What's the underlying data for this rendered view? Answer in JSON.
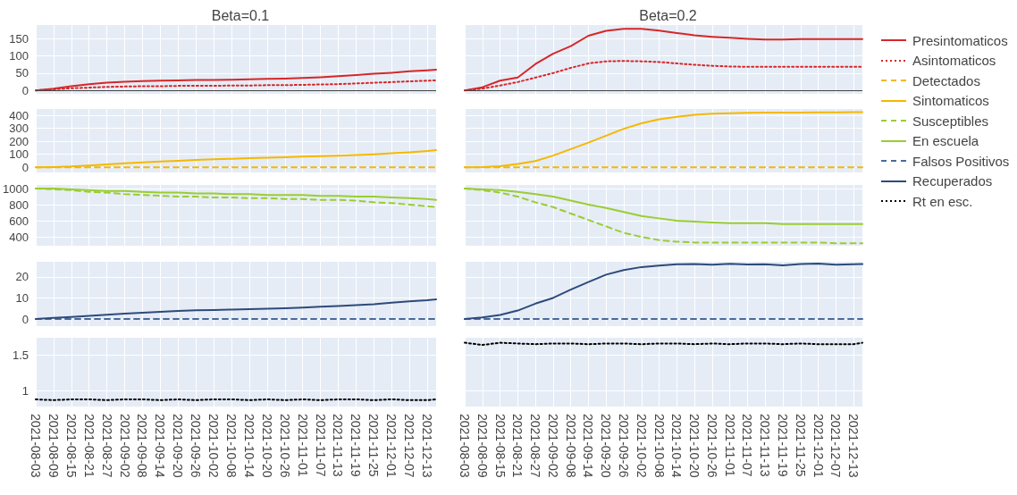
{
  "chart_data": [
    {
      "type": "line",
      "title": "Beta=0.1",
      "x": [
        "2021-08-03",
        "2021-08-09",
        "2021-08-15",
        "2021-08-21",
        "2021-08-27",
        "2021-09-02",
        "2021-09-08",
        "2021-09-14",
        "2021-09-20",
        "2021-09-26",
        "2021-10-02",
        "2021-10-08",
        "2021-10-14",
        "2021-10-20",
        "2021-10-26",
        "2021-11-01",
        "2021-11-07",
        "2021-11-13",
        "2021-11-19",
        "2021-11-25",
        "2021-12-01",
        "2021-12-07",
        "2021-12-13",
        "2021-12-16"
      ],
      "xlim": [
        "2021-08-03",
        "2021-12-16"
      ],
      "xticks": [
        "2021-08-03",
        "2021-08-09",
        "2021-08-15",
        "2021-08-21",
        "2021-08-27",
        "2021-09-02",
        "2021-09-08",
        "2021-09-14",
        "2021-09-20",
        "2021-09-26",
        "2021-10-02",
        "2021-10-08",
        "2021-10-14",
        "2021-10-20",
        "2021-10-26",
        "2021-11-01",
        "2021-11-07",
        "2021-11-13",
        "2021-11-19",
        "2021-11-25",
        "2021-12-01",
        "2021-12-07",
        "2021-12-13"
      ],
      "ylim": [
        -10,
        189
      ],
      "yticks": [
        0,
        50,
        100,
        150
      ],
      "grid": true,
      "legend": "right",
      "tick_labels": "y",
      "ref_lines": [
        {
          "axis": "y",
          "value": 0,
          "color": "#444444"
        }
      ],
      "series": [
        {
          "name": "Presintomaticos",
          "color": "#d62728",
          "line_style": "solid",
          "values": [
            0,
            5,
            12,
            18,
            22,
            25,
            27,
            28,
            29,
            30,
            30,
            31,
            32,
            33,
            34,
            36,
            38,
            41,
            44,
            48,
            51,
            55,
            58,
            60
          ]
        },
        {
          "name": "Asintomaticos",
          "color": "#d62728",
          "line_style": "dotted",
          "values": [
            0,
            3,
            6,
            8,
            10,
            11,
            12,
            12,
            13,
            13,
            13,
            14,
            14,
            15,
            15,
            16,
            17,
            18,
            20,
            22,
            24,
            26,
            28,
            29
          ]
        }
      ]
    },
    {
      "type": "line",
      "title": "Beta=0.2",
      "x": [
        "2021-08-03",
        "2021-08-09",
        "2021-08-15",
        "2021-08-21",
        "2021-08-27",
        "2021-09-02",
        "2021-09-08",
        "2021-09-14",
        "2021-09-20",
        "2021-09-26",
        "2021-10-02",
        "2021-10-08",
        "2021-10-14",
        "2021-10-20",
        "2021-10-26",
        "2021-11-01",
        "2021-11-07",
        "2021-11-13",
        "2021-11-19",
        "2021-11-25",
        "2021-12-01",
        "2021-12-07",
        "2021-12-13",
        "2021-12-16"
      ],
      "xlim": [
        "2021-08-03",
        "2021-12-16"
      ],
      "xticks": [
        "2021-08-03",
        "2021-08-09",
        "2021-08-15",
        "2021-08-21",
        "2021-08-27",
        "2021-09-02",
        "2021-09-08",
        "2021-09-14",
        "2021-09-20",
        "2021-09-26",
        "2021-10-02",
        "2021-10-08",
        "2021-10-14",
        "2021-10-20",
        "2021-10-26",
        "2021-11-01",
        "2021-11-07",
        "2021-11-13",
        "2021-11-19",
        "2021-11-25",
        "2021-12-01",
        "2021-12-07",
        "2021-12-13"
      ],
      "ylim": [
        -10,
        189
      ],
      "yticks": [
        0,
        50,
        100,
        150
      ],
      "grid": true,
      "tick_labels": false,
      "ref_lines": [
        {
          "axis": "y",
          "value": 0,
          "color": "#444444"
        }
      ],
      "series": [
        {
          "color": "#d62728",
          "line_style": "solid",
          "values": [
            0,
            9,
            28,
            37,
            76,
            106,
            128,
            158,
            172,
            178,
            178,
            173,
            166,
            159,
            155,
            152,
            149,
            147,
            147,
            148,
            148,
            148,
            148,
            148
          ]
        },
        {
          "color": "#d62728",
          "line_style": "dotted",
          "values": [
            0,
            5,
            14,
            24,
            37,
            50,
            65,
            78,
            84,
            85,
            84,
            82,
            78,
            74,
            71,
            69,
            68,
            68,
            68,
            68,
            68,
            68,
            68,
            68
          ]
        }
      ]
    },
    {
      "type": "line",
      "x": [
        "2021-08-03",
        "2021-08-09",
        "2021-08-15",
        "2021-08-21",
        "2021-08-27",
        "2021-09-02",
        "2021-09-08",
        "2021-09-14",
        "2021-09-20",
        "2021-09-26",
        "2021-10-02",
        "2021-10-08",
        "2021-10-14",
        "2021-10-20",
        "2021-10-26",
        "2021-11-01",
        "2021-11-07",
        "2021-11-13",
        "2021-11-19",
        "2021-11-25",
        "2021-12-01",
        "2021-12-07",
        "2021-12-13",
        "2021-12-16"
      ],
      "xlim": [
        "2021-08-03",
        "2021-12-16"
      ],
      "xticks": [
        "2021-08-03",
        "2021-08-09",
        "2021-08-15",
        "2021-08-21",
        "2021-08-27",
        "2021-09-02",
        "2021-09-08",
        "2021-09-14",
        "2021-09-20",
        "2021-09-26",
        "2021-10-02",
        "2021-10-08",
        "2021-10-14",
        "2021-10-20",
        "2021-10-26",
        "2021-11-01",
        "2021-11-07",
        "2021-11-13",
        "2021-11-19",
        "2021-11-25",
        "2021-12-01",
        "2021-12-07",
        "2021-12-13"
      ],
      "ylim": [
        -40,
        450
      ],
      "yticks": [
        0,
        100,
        200,
        300,
        400
      ],
      "grid": true,
      "legend": "right",
      "tick_labels": "y",
      "series": [
        {
          "name": "Detectados",
          "color": "#f5b800",
          "line_style": "dashed",
          "values": [
            0,
            0,
            0,
            0,
            0,
            0,
            0,
            0,
            0,
            0,
            0,
            0,
            0,
            0,
            0,
            0,
            0,
            0,
            0,
            0,
            0,
            0,
            0,
            0
          ]
        },
        {
          "name": "Sintomaticos",
          "color": "#f5b800",
          "line_style": "solid",
          "values": [
            0,
            2,
            6,
            14,
            22,
            30,
            37,
            44,
            50,
            56,
            62,
            66,
            70,
            74,
            78,
            82,
            86,
            90,
            94,
            100,
            108,
            116,
            126,
            133
          ]
        }
      ]
    },
    {
      "type": "line",
      "x": [
        "2021-08-03",
        "2021-08-09",
        "2021-08-15",
        "2021-08-21",
        "2021-08-27",
        "2021-09-02",
        "2021-09-08",
        "2021-09-14",
        "2021-09-20",
        "2021-09-26",
        "2021-10-02",
        "2021-10-08",
        "2021-10-14",
        "2021-10-20",
        "2021-10-26",
        "2021-11-01",
        "2021-11-07",
        "2021-11-13",
        "2021-11-19",
        "2021-11-25",
        "2021-12-01",
        "2021-12-07",
        "2021-12-13",
        "2021-12-16"
      ],
      "xlim": [
        "2021-08-03",
        "2021-12-16"
      ],
      "xticks": [
        "2021-08-03",
        "2021-08-09",
        "2021-08-15",
        "2021-08-21",
        "2021-08-27",
        "2021-09-02",
        "2021-09-08",
        "2021-09-14",
        "2021-09-20",
        "2021-09-26",
        "2021-10-02",
        "2021-10-08",
        "2021-10-14",
        "2021-10-20",
        "2021-10-26",
        "2021-11-01",
        "2021-11-07",
        "2021-11-13",
        "2021-11-19",
        "2021-11-25",
        "2021-12-01",
        "2021-12-07",
        "2021-12-13"
      ],
      "ylim": [
        -40,
        450
      ],
      "yticks": [
        0,
        100,
        200,
        300,
        400
      ],
      "grid": true,
      "tick_labels": false,
      "series": [
        {
          "color": "#f5b800",
          "line_style": "dashed",
          "values": [
            0,
            0,
            0,
            0,
            0,
            0,
            0,
            0,
            0,
            0,
            0,
            0,
            0,
            0,
            0,
            0,
            0,
            0,
            0,
            0,
            0,
            0,
            0,
            0
          ]
        },
        {
          "color": "#f5b800",
          "line_style": "solid",
          "values": [
            0,
            2,
            8,
            25,
            48,
            90,
            140,
            190,
            244,
            297,
            340,
            370,
            389,
            405,
            414,
            418,
            421,
            423,
            423,
            423,
            424,
            424,
            425,
            425
          ]
        }
      ]
    },
    {
      "type": "line",
      "x": [
        "2021-08-03",
        "2021-08-09",
        "2021-08-15",
        "2021-08-21",
        "2021-08-27",
        "2021-09-02",
        "2021-09-08",
        "2021-09-14",
        "2021-09-20",
        "2021-09-26",
        "2021-10-02",
        "2021-10-08",
        "2021-10-14",
        "2021-10-20",
        "2021-10-26",
        "2021-11-01",
        "2021-11-07",
        "2021-11-13",
        "2021-11-19",
        "2021-11-25",
        "2021-12-01",
        "2021-12-07",
        "2021-12-13",
        "2021-12-16"
      ],
      "xlim": [
        "2021-08-03",
        "2021-12-16"
      ],
      "xticks": [
        "2021-08-03",
        "2021-08-09",
        "2021-08-15",
        "2021-08-21",
        "2021-08-27",
        "2021-09-02",
        "2021-09-08",
        "2021-09-14",
        "2021-09-20",
        "2021-09-26",
        "2021-10-02",
        "2021-10-08",
        "2021-10-14",
        "2021-10-20",
        "2021-10-26",
        "2021-11-01",
        "2021-11-07",
        "2021-11-13",
        "2021-11-19",
        "2021-11-25",
        "2021-12-01",
        "2021-12-07",
        "2021-12-13"
      ],
      "ylim": [
        290,
        1045
      ],
      "yticks": [
        400,
        600,
        800,
        1000
      ],
      "grid": true,
      "legend": "right",
      "tick_labels": "y",
      "series": [
        {
          "name": "Susceptibles",
          "color": "#9acd32",
          "line_style": "dashed",
          "values": [
            1000,
            990,
            980,
            960,
            950,
            930,
            920,
            910,
            900,
            900,
            890,
            890,
            880,
            880,
            870,
            870,
            860,
            860,
            850,
            830,
            820,
            800,
            780,
            770
          ]
        },
        {
          "name": "En escuela",
          "color": "#9acd32",
          "line_style": "solid",
          "values": [
            1000,
            1000,
            990,
            980,
            970,
            970,
            960,
            950,
            950,
            940,
            940,
            930,
            930,
            920,
            920,
            920,
            910,
            910,
            900,
            900,
            890,
            880,
            870,
            860
          ]
        }
      ]
    },
    {
      "type": "line",
      "x": [
        "2021-08-03",
        "2021-08-09",
        "2021-08-15",
        "2021-08-21",
        "2021-08-27",
        "2021-09-02",
        "2021-09-08",
        "2021-09-14",
        "2021-09-20",
        "2021-09-26",
        "2021-10-02",
        "2021-10-08",
        "2021-10-14",
        "2021-10-20",
        "2021-10-26",
        "2021-11-01",
        "2021-11-07",
        "2021-11-13",
        "2021-11-19",
        "2021-11-25",
        "2021-12-01",
        "2021-12-07",
        "2021-12-13",
        "2021-12-16"
      ],
      "xlim": [
        "2021-08-03",
        "2021-12-16"
      ],
      "xticks": [
        "2021-08-03",
        "2021-08-09",
        "2021-08-15",
        "2021-08-21",
        "2021-08-27",
        "2021-09-02",
        "2021-09-08",
        "2021-09-14",
        "2021-09-20",
        "2021-09-26",
        "2021-10-02",
        "2021-10-08",
        "2021-10-14",
        "2021-10-20",
        "2021-10-26",
        "2021-11-01",
        "2021-11-07",
        "2021-11-13",
        "2021-11-19",
        "2021-11-25",
        "2021-12-01",
        "2021-12-07",
        "2021-12-13"
      ],
      "ylim": [
        290,
        1045
      ],
      "yticks": [
        400,
        600,
        800,
        1000
      ],
      "grid": true,
      "tick_labels": false,
      "series": [
        {
          "color": "#9acd32",
          "line_style": "dashed",
          "values": [
            1000,
            980,
            950,
            900,
            830,
            770,
            690,
            610,
            530,
            450,
            400,
            360,
            340,
            330,
            330,
            330,
            330,
            330,
            330,
            330,
            330,
            320,
            320,
            320
          ]
        },
        {
          "color": "#9acd32",
          "line_style": "solid",
          "values": [
            1000,
            990,
            980,
            960,
            930,
            900,
            850,
            800,
            760,
            710,
            660,
            630,
            600,
            590,
            580,
            570,
            570,
            570,
            560,
            560,
            560,
            560,
            560,
            560
          ]
        }
      ]
    },
    {
      "type": "line",
      "x": [
        "2021-08-03",
        "2021-08-09",
        "2021-08-15",
        "2021-08-21",
        "2021-08-27",
        "2021-09-02",
        "2021-09-08",
        "2021-09-14",
        "2021-09-20",
        "2021-09-26",
        "2021-10-02",
        "2021-10-08",
        "2021-10-14",
        "2021-10-20",
        "2021-10-26",
        "2021-11-01",
        "2021-11-07",
        "2021-11-13",
        "2021-11-19",
        "2021-11-25",
        "2021-12-01",
        "2021-12-07",
        "2021-12-13",
        "2021-12-16"
      ],
      "xlim": [
        "2021-08-03",
        "2021-12-16"
      ],
      "xticks": [
        "2021-08-03",
        "2021-08-09",
        "2021-08-15",
        "2021-08-21",
        "2021-08-27",
        "2021-09-02",
        "2021-09-08",
        "2021-09-14",
        "2021-09-20",
        "2021-09-26",
        "2021-10-02",
        "2021-10-08",
        "2021-10-14",
        "2021-10-20",
        "2021-10-26",
        "2021-11-01",
        "2021-11-07",
        "2021-11-13",
        "2021-11-19",
        "2021-11-25",
        "2021-12-01",
        "2021-12-07",
        "2021-12-13"
      ],
      "ylim": [
        -3.4,
        27.2
      ],
      "yticks": [
        0,
        10,
        20
      ],
      "grid": true,
      "legend": "right",
      "tick_labels": "y",
      "series": [
        {
          "name": "Falsos Positivos",
          "color": "#4a6a9a",
          "line_style": "dashed",
          "values": [
            0,
            0,
            0,
            0,
            0,
            0,
            0,
            0,
            0,
            0,
            0,
            0,
            0,
            0,
            0,
            0,
            0,
            0,
            0,
            0,
            0,
            0,
            0,
            0
          ]
        },
        {
          "name": "Recuperados",
          "color": "#2e4a7a",
          "line_style": "solid",
          "values": [
            0,
            0.5,
            1,
            1.5,
            2,
            2.5,
            3,
            3.4,
            3.8,
            4.1,
            4.3,
            4.5,
            4.7,
            4.9,
            5.1,
            5.4,
            5.8,
            6.2,
            6.6,
            7,
            7.8,
            8.4,
            8.9,
            9.3
          ]
        }
      ]
    },
    {
      "type": "line",
      "x": [
        "2021-08-03",
        "2021-08-09",
        "2021-08-15",
        "2021-08-21",
        "2021-08-27",
        "2021-09-02",
        "2021-09-08",
        "2021-09-14",
        "2021-09-20",
        "2021-09-26",
        "2021-10-02",
        "2021-10-08",
        "2021-10-14",
        "2021-10-20",
        "2021-10-26",
        "2021-11-01",
        "2021-11-07",
        "2021-11-13",
        "2021-11-19",
        "2021-11-25",
        "2021-12-01",
        "2021-12-07",
        "2021-12-13",
        "2021-12-16"
      ],
      "xlim": [
        "2021-08-03",
        "2021-12-16"
      ],
      "xticks": [
        "2021-08-03",
        "2021-08-09",
        "2021-08-15",
        "2021-08-21",
        "2021-08-27",
        "2021-09-02",
        "2021-09-08",
        "2021-09-14",
        "2021-09-20",
        "2021-09-26",
        "2021-10-02",
        "2021-10-08",
        "2021-10-14",
        "2021-10-20",
        "2021-10-26",
        "2021-11-01",
        "2021-11-07",
        "2021-11-13",
        "2021-11-19",
        "2021-11-25",
        "2021-12-01",
        "2021-12-07",
        "2021-12-13"
      ],
      "ylim": [
        -3.4,
        27.2
      ],
      "yticks": [
        0,
        10,
        20
      ],
      "grid": true,
      "tick_labels": false,
      "series": [
        {
          "color": "#4a6a9a",
          "line_style": "dashed",
          "values": [
            0,
            0,
            0,
            0,
            0,
            0,
            0,
            0,
            0,
            0,
            0,
            0,
            0,
            0,
            0,
            0,
            0,
            0,
            0,
            0,
            0,
            0,
            0,
            0
          ]
        },
        {
          "color": "#2e4a7a",
          "line_style": "solid",
          "values": [
            0,
            0.7,
            1.9,
            4,
            7.3,
            10,
            14,
            17.6,
            21.1,
            23.3,
            24.7,
            25.4,
            26,
            26.1,
            25.8,
            26.2,
            25.9,
            26,
            25.5,
            26.1,
            26.3,
            25.8,
            26,
            26.1
          ]
        }
      ]
    },
    {
      "type": "line",
      "x": [
        "2021-08-03",
        "2021-08-09",
        "2021-08-15",
        "2021-08-21",
        "2021-08-27",
        "2021-09-02",
        "2021-09-08",
        "2021-09-14",
        "2021-09-20",
        "2021-09-26",
        "2021-10-02",
        "2021-10-08",
        "2021-10-14",
        "2021-10-20",
        "2021-10-26",
        "2021-11-01",
        "2021-11-07",
        "2021-11-13",
        "2021-11-19",
        "2021-11-25",
        "2021-12-01",
        "2021-12-07",
        "2021-12-13",
        "2021-12-16"
      ],
      "xlim": [
        "2021-08-03",
        "2021-12-16"
      ],
      "xticks": [
        "2021-08-03",
        "2021-08-09",
        "2021-08-15",
        "2021-08-21",
        "2021-08-27",
        "2021-09-02",
        "2021-09-08",
        "2021-09-14",
        "2021-09-20",
        "2021-09-26",
        "2021-10-02",
        "2021-10-08",
        "2021-10-14",
        "2021-10-20",
        "2021-10-26",
        "2021-11-01",
        "2021-11-07",
        "2021-11-13",
        "2021-11-19",
        "2021-11-25",
        "2021-12-01",
        "2021-12-07",
        "2021-12-13"
      ],
      "ylim": [
        0.78,
        1.74
      ],
      "yticks": [
        1,
        1.5
      ],
      "grid": true,
      "legend": "right",
      "series": [
        {
          "name": "Rt en esc.",
          "color": "#000000",
          "line_style": "dotted",
          "values": [
            0.88,
            0.87,
            0.88,
            0.88,
            0.87,
            0.88,
            0.88,
            0.87,
            0.88,
            0.87,
            0.88,
            0.88,
            0.87,
            0.88,
            0.87,
            0.88,
            0.87,
            0.88,
            0.88,
            0.87,
            0.88,
            0.87,
            0.87,
            0.88
          ]
        }
      ]
    },
    {
      "type": "line",
      "x": [
        "2021-08-03",
        "2021-08-09",
        "2021-08-15",
        "2021-08-21",
        "2021-08-27",
        "2021-09-02",
        "2021-09-08",
        "2021-09-14",
        "2021-09-20",
        "2021-09-26",
        "2021-10-02",
        "2021-10-08",
        "2021-10-14",
        "2021-10-20",
        "2021-10-26",
        "2021-11-01",
        "2021-11-07",
        "2021-11-13",
        "2021-11-19",
        "2021-11-25",
        "2021-12-01",
        "2021-12-07",
        "2021-12-13",
        "2021-12-16"
      ],
      "xlim": [
        "2021-08-03",
        "2021-12-16"
      ],
      "xticks": [
        "2021-08-03",
        "2021-08-09",
        "2021-08-15",
        "2021-08-21",
        "2021-08-27",
        "2021-09-02",
        "2021-09-08",
        "2021-09-14",
        "2021-09-20",
        "2021-09-26",
        "2021-10-02",
        "2021-10-08",
        "2021-10-14",
        "2021-10-20",
        "2021-10-26",
        "2021-11-01",
        "2021-11-07",
        "2021-11-13",
        "2021-11-19",
        "2021-11-25",
        "2021-12-01",
        "2021-12-07",
        "2021-12-13"
      ],
      "ylim": [
        0.78,
        1.74
      ],
      "yticks": [
        1,
        1.5
      ],
      "grid": true,
      "tick_labels": "x",
      "series": [
        {
          "color": "#000000",
          "line_style": "dotted",
          "values": [
            1.67,
            1.64,
            1.67,
            1.66,
            1.65,
            1.66,
            1.66,
            1.65,
            1.66,
            1.66,
            1.65,
            1.66,
            1.66,
            1.65,
            1.66,
            1.65,
            1.66,
            1.66,
            1.65,
            1.66,
            1.65,
            1.65,
            1.65,
            1.67
          ]
        }
      ]
    }
  ]
}
